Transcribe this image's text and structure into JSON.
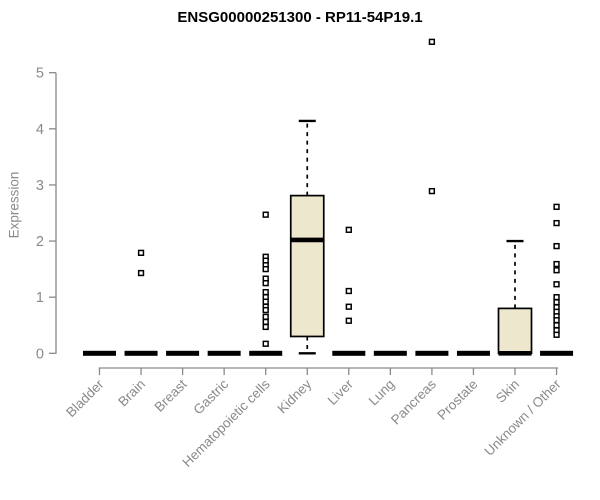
{
  "chart_data": {
    "type": "boxplot",
    "title": "ENSG00000251300 - RP11-54P19.1",
    "xlabel": "",
    "ylabel": "Expression",
    "ylim": [
      0,
      5
    ],
    "yticks": [
      0,
      1,
      2,
      3,
      4,
      5
    ],
    "grid": false,
    "legend": false,
    "marker": "open-square",
    "categories": [
      "Bladder",
      "Brain",
      "Breast",
      "Gastric",
      "Hematopoietic cells",
      "Kidney",
      "Liver",
      "Lung",
      "Pancreas",
      "Prostate",
      "Skin",
      "Unknown / Other"
    ],
    "boxes": [
      {
        "category": "Bladder",
        "low": 0,
        "q1": 0,
        "median": 0,
        "q3": 0,
        "high": 0,
        "outliers": []
      },
      {
        "category": "Brain",
        "low": 0,
        "q1": 0,
        "median": 0,
        "q3": 0,
        "high": 0,
        "outliers": [
          1.79,
          1.43
        ]
      },
      {
        "category": "Breast",
        "low": 0,
        "q1": 0,
        "median": 0,
        "q3": 0,
        "high": 0,
        "outliers": []
      },
      {
        "category": "Gastric",
        "low": 0,
        "q1": 0,
        "median": 0,
        "q3": 0,
        "high": 0,
        "outliers": []
      },
      {
        "category": "Hematopoietic cells",
        "low": 0,
        "q1": 0,
        "median": 0,
        "q3": 0,
        "high": 0,
        "outliers": [
          2.47,
          1.72,
          1.65,
          1.57,
          1.5,
          1.33,
          1.25,
          1.09,
          1.0,
          0.92,
          0.83,
          0.77,
          0.65,
          0.56,
          0.47,
          0.17
        ]
      },
      {
        "category": "Kidney",
        "low": 0,
        "q1": 0.3,
        "median": 2.02,
        "q3": 2.81,
        "high": 4.14,
        "outliers": []
      },
      {
        "category": "Liver",
        "low": 0,
        "q1": 0,
        "median": 0,
        "q3": 0,
        "high": 0,
        "outliers": [
          2.2,
          1.11,
          0.83,
          0.58
        ]
      },
      {
        "category": "Lung",
        "low": 0,
        "q1": 0,
        "median": 0,
        "q3": 0,
        "high": 0,
        "outliers": []
      },
      {
        "category": "Pancreas",
        "low": 0,
        "q1": 0,
        "median": 0,
        "q3": 0,
        "high": 0,
        "outliers": [
          5.55,
          2.89
        ]
      },
      {
        "category": "Prostate",
        "low": 0,
        "q1": 0,
        "median": 0,
        "q3": 0,
        "high": 0,
        "outliers": []
      },
      {
        "category": "Skin",
        "low": 0,
        "q1": 0,
        "median": 0,
        "q3": 0.8,
        "high": 2.0,
        "outliers": []
      },
      {
        "category": "Unknown / Other",
        "low": 0,
        "q1": 0,
        "median": 0,
        "q3": 0,
        "high": 0,
        "outliers": [
          2.61,
          2.32,
          1.91,
          1.59,
          1.48,
          1.23,
          1.0,
          0.91,
          0.82,
          0.74,
          0.66,
          0.59,
          0.5,
          0.41,
          0.33
        ]
      }
    ],
    "colors": {
      "box_fill": "#ECE7CD",
      "box_stroke": "#000000",
      "median": "#000000",
      "whisker": "#000000",
      "outlier_stroke": "#000000",
      "outlier_fill": "#ffffff",
      "axis": "#8a8a8a",
      "tick_label": "#8a8a8a",
      "title": "#000000",
      "background": "#ffffff"
    }
  }
}
